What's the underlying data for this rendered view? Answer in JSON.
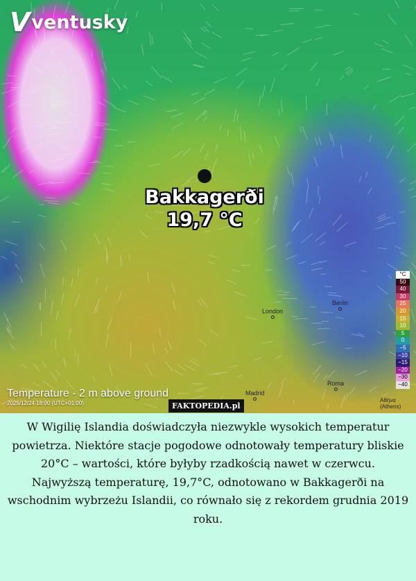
{
  "logo": {
    "text": "ventusky"
  },
  "station": {
    "name": "Bakkagerði",
    "temp": "19,7 °C"
  },
  "cities": {
    "london": "London",
    "berlin": "Berlin",
    "madrid": "Madrid",
    "roma": "Roma",
    "athens_local": "Αθήνα",
    "athens": "(Athens)"
  },
  "map": {
    "title": "Temperature - 2 m above ground",
    "time": "2025/12/24 18:00 (UTC+01:00)"
  },
  "legend": {
    "unit": "°C",
    "items": [
      {
        "v": "50",
        "c": "#3a0a12"
      },
      {
        "v": "40",
        "c": "#7a1a38"
      },
      {
        "v": "30",
        "c": "#c83c6c"
      },
      {
        "v": "25",
        "c": "#e8765a"
      },
      {
        "v": "20",
        "c": "#d8962e"
      },
      {
        "v": "15",
        "c": "#c8b030"
      },
      {
        "v": "10",
        "c": "#a0b830"
      },
      {
        "v": "5",
        "c": "#30a040"
      },
      {
        "v": "0",
        "c": "#20a0a0"
      },
      {
        "v": "−5",
        "c": "#3070b8"
      },
      {
        "v": "−10",
        "c": "#3a40a0"
      },
      {
        "v": "−15",
        "c": "#2a1a70"
      },
      {
        "v": "−20",
        "c": "#a020a0"
      },
      {
        "v": "−30",
        "c": "#e8a0e0"
      },
      {
        "v": "−40",
        "c": "#e4e4e4"
      }
    ]
  },
  "watermark": "FAKTOPEDIA.pl",
  "caption": {
    "p1": "W Wigilię Islandia doświadczyła niezwykle wysokich temperatur powietrza. Niektóre stacje pogodowe odnotowały temperatury bliskie 20°C – wartości, które byłyby rzadkością nawet w czerwcu.",
    "p2": "Najwyższą temperaturę, 19,7°C, odnotowano w Bakkagerði na wschodnim wybrzeżu Islandii, co równało się z rekordem grudnia 2019 roku."
  }
}
